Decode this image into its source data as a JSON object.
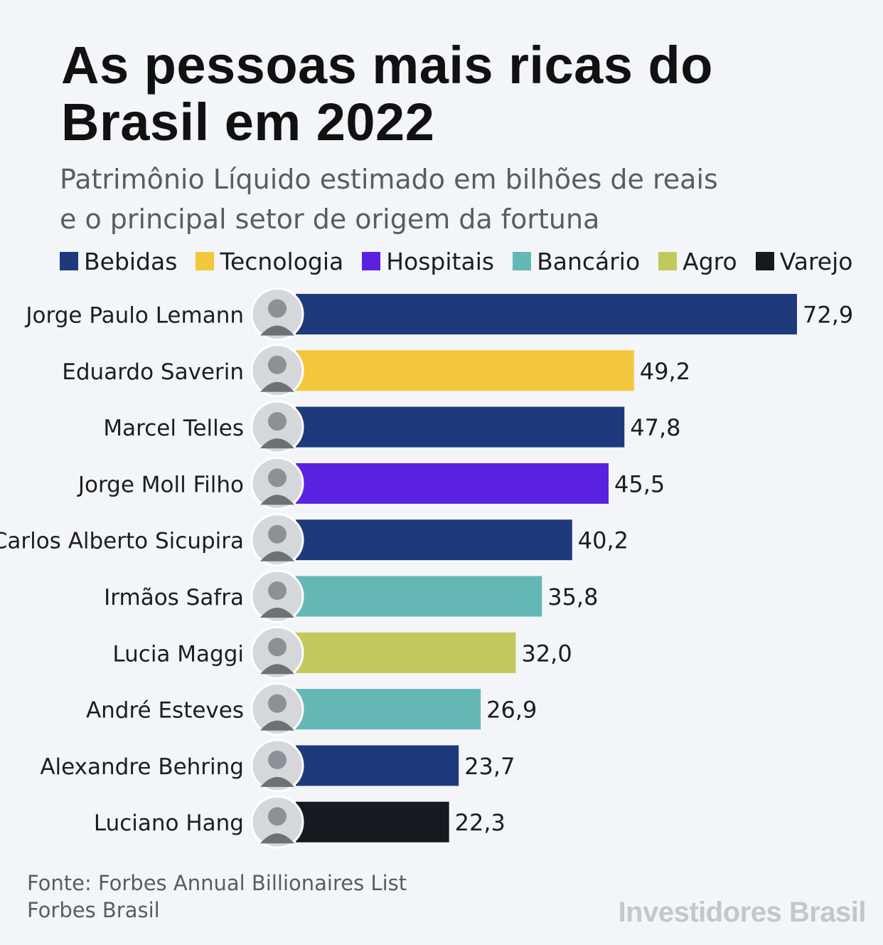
{
  "header": {
    "title": "As pessoas mais ricas do Brasil em 2022",
    "subtitle_line1": "Patrimônio Líquido estimado em bilhões de reais",
    "subtitle_line2": "e o principal setor de origem da fortuna"
  },
  "legend": [
    {
      "label": "Bebidas",
      "color": "#1e3a7c"
    },
    {
      "label": "Tecnologia",
      "color": "#f3c73c"
    },
    {
      "label": "Hospitais",
      "color": "#5a22e0"
    },
    {
      "label": "Bancário",
      "color": "#63b8b5"
    },
    {
      "label": "Agro",
      "color": "#c3c85d"
    },
    {
      "label": "Varejo",
      "color": "#17191e"
    }
  ],
  "chart_data": {
    "type": "bar",
    "orientation": "horizontal",
    "title": "As pessoas mais ricas do Brasil em 2022",
    "subtitle": "Patrimônio Líquido estimado em bilhões de reais e o principal setor de origem da fortuna",
    "categories": [
      "Jorge Paulo Lemann",
      "Eduardo Saverin",
      "Marcel Telles",
      "Jorge Moll Filho",
      "Carlos Alberto Sicupira",
      "Irmãos Safra",
      "Lucia Maggi",
      "André Esteves",
      "Alexandre Behring",
      "Luciano Hang"
    ],
    "values": [
      72.9,
      49.2,
      47.8,
      45.5,
      40.2,
      35.8,
      32.0,
      26.9,
      23.7,
      22.3
    ],
    "value_labels": [
      "72,9",
      "49,2",
      "47,8",
      "45,5",
      "40,2",
      "35,8",
      "32,0",
      "26,9",
      "23,7",
      "22,3"
    ],
    "sectors": [
      "Bebidas",
      "Tecnologia",
      "Bebidas",
      "Hospitais",
      "Bebidas",
      "Bancário",
      "Agro",
      "Bancário",
      "Bebidas",
      "Varejo"
    ],
    "xlim": [
      0,
      72.9
    ],
    "grid": false,
    "legend_position": "top"
  },
  "footer": {
    "source_line1": "Fonte: Forbes Annual Billionaires List",
    "source_line2": "Forbes Brasil",
    "brand": "Investidores Brasil"
  }
}
